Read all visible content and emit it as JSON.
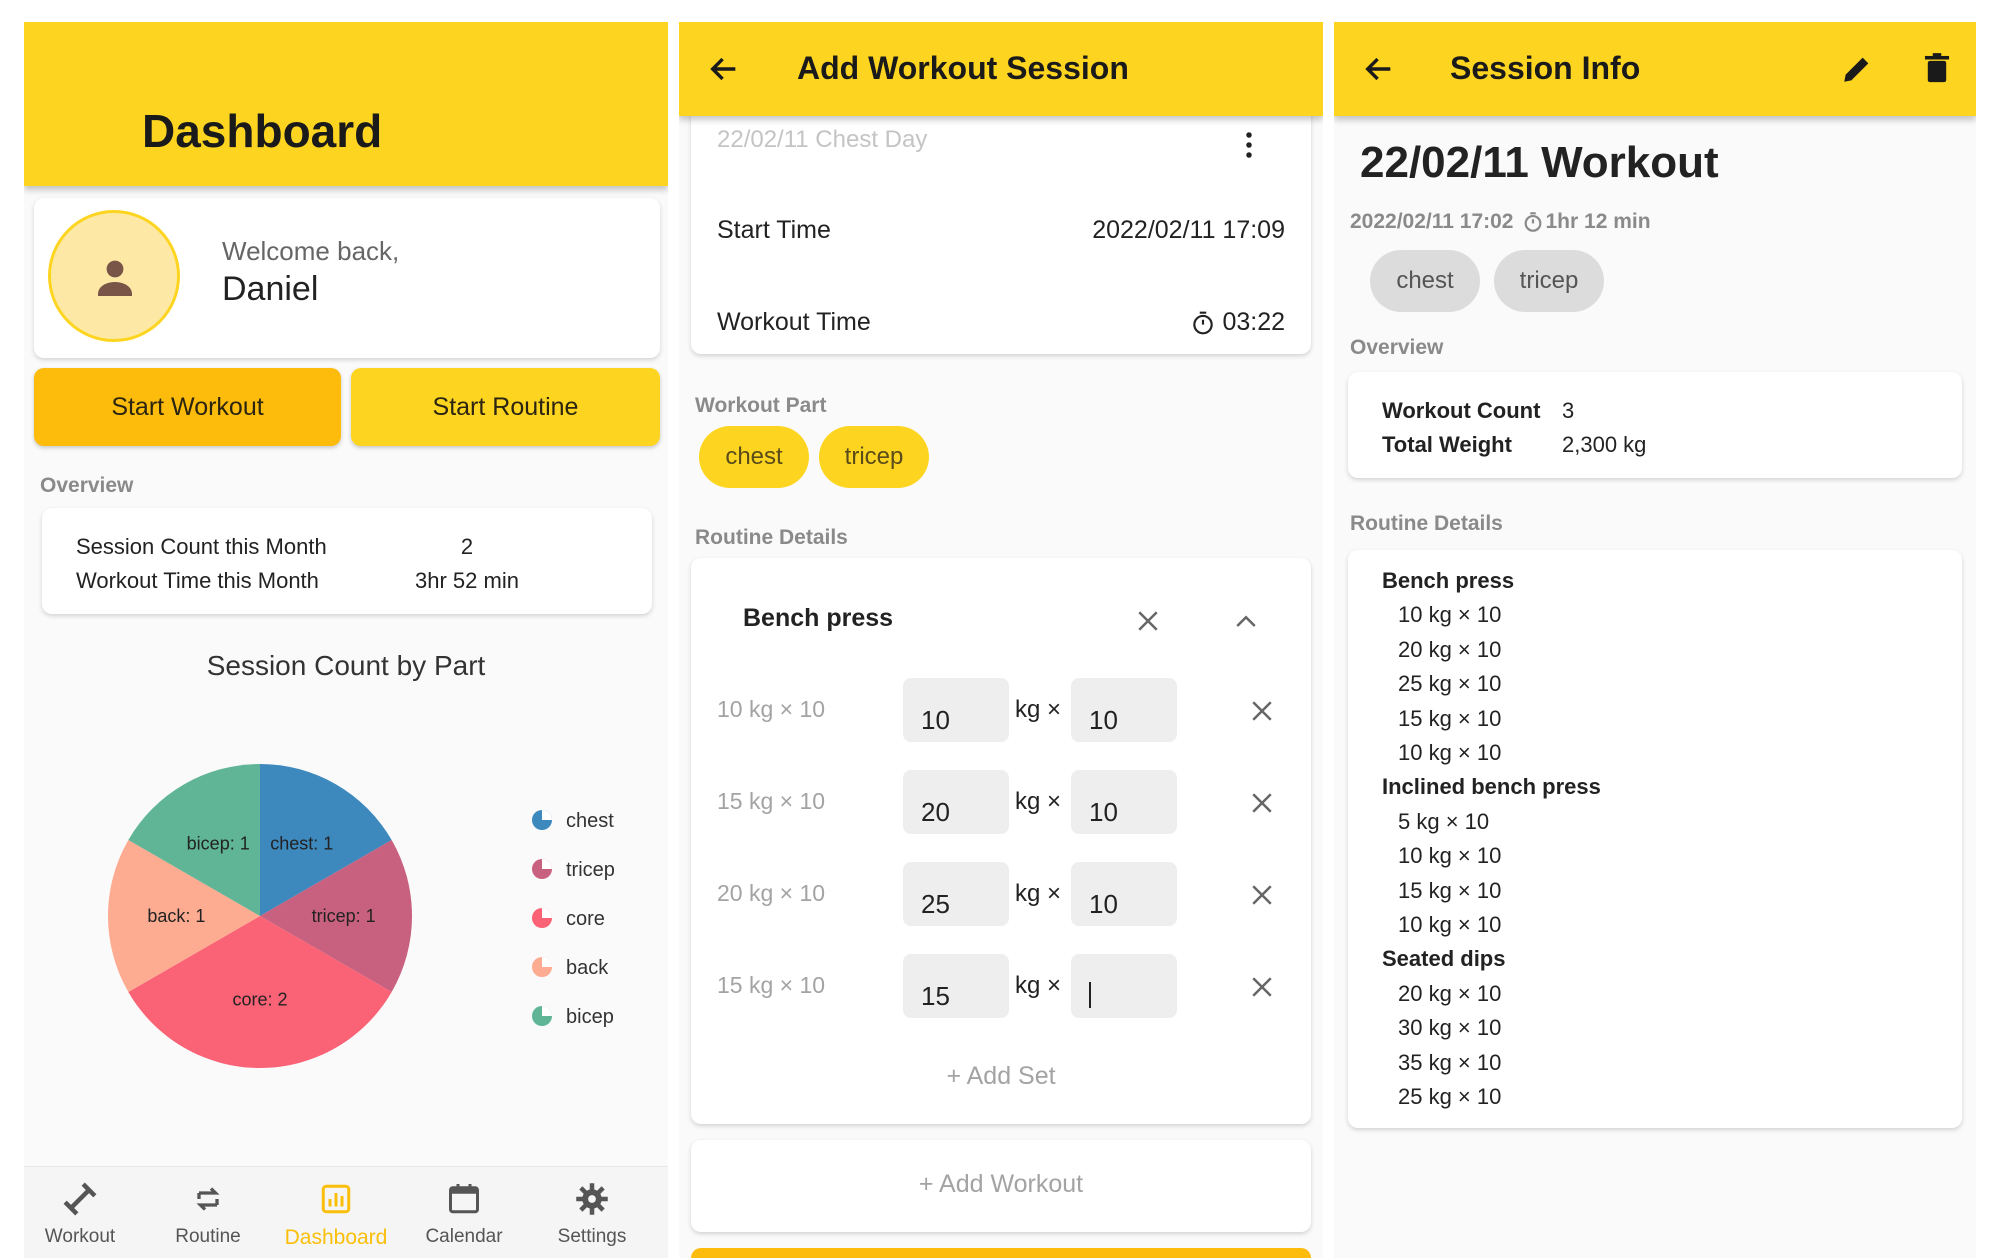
{
  "dashboard": {
    "title": "Dashboard",
    "welcome": "Welcome back,",
    "user_name": "Daniel",
    "start_workout": "Start Workout",
    "start_routine": "Start Routine",
    "overview_label": "Overview",
    "overview_rows": [
      {
        "label": "Session Count this Month",
        "value": "2"
      },
      {
        "label": "Workout Time this Month",
        "value": "3hr 52 min"
      }
    ],
    "chart_data": {
      "type": "pie",
      "title": "Session Count by Part",
      "slices": [
        {
          "name": "chest",
          "value": 1,
          "label": "chest: 1",
          "color": "#3d88bd"
        },
        {
          "name": "tricep",
          "value": 1,
          "label": "tricep: 1",
          "color": "#c8607f"
        },
        {
          "name": "core",
          "value": 2,
          "label": "core: 2",
          "color": "#fa6276"
        },
        {
          "name": "back",
          "value": 1,
          "label": "back: 1",
          "color": "#fdab91"
        },
        {
          "name": "bicep",
          "value": 1,
          "label": "bicep: 1",
          "color": "#60b596"
        }
      ],
      "legend_position": "right"
    },
    "nav": [
      {
        "label": "Workout",
        "icon": "dumbbell-icon",
        "active": false
      },
      {
        "label": "Routine",
        "icon": "repeat-icon",
        "active": false
      },
      {
        "label": "Dashboard",
        "icon": "chart-icon",
        "active": true
      },
      {
        "label": "Calendar",
        "icon": "calendar-icon",
        "active": false
      },
      {
        "label": "Settings",
        "icon": "gear-icon",
        "active": false
      }
    ]
  },
  "add_session": {
    "title": "Add Workout Session",
    "session_name": "22/02/11 Chest Day",
    "start_time_label": "Start Time",
    "start_time_value": "2022/02/11 17:09",
    "workout_time_label": "Workout Time",
    "workout_time_value": "03:22",
    "workout_part_label": "Workout Part",
    "parts": [
      "chest",
      "tricep"
    ],
    "routine_details_label": "Routine Details",
    "exercise_name": "Bench press",
    "sets": [
      {
        "previous": "10 kg × 10",
        "weight": "10",
        "reps": "10"
      },
      {
        "previous": "15 kg × 10",
        "weight": "20",
        "reps": "10"
      },
      {
        "previous": "20 kg × 10",
        "weight": "25",
        "reps": "10"
      },
      {
        "previous": "15 kg × 10",
        "weight": "15",
        "reps": ""
      }
    ],
    "kg_x": "kg ×",
    "add_set": "Add Set",
    "add_workout": "Add Workout"
  },
  "session_info": {
    "title": "Session Info",
    "heading": "22/02/11 Workout",
    "datetime": "2022/02/11 17:02",
    "duration": "1hr 12 min",
    "parts": [
      "chest",
      "tricep"
    ],
    "overview_label": "Overview",
    "overview_rows": [
      {
        "label": "Workout Count",
        "value": "3"
      },
      {
        "label": "Total Weight",
        "value": "2,300 kg"
      }
    ],
    "routine_details_label": "Routine Details",
    "exercises": [
      {
        "name": "Bench press",
        "sets": [
          "10 kg × 10",
          "20 kg × 10",
          "25 kg × 10",
          "15 kg × 10",
          "10 kg × 10"
        ]
      },
      {
        "name": "Inclined bench press",
        "sets": [
          "5 kg × 10",
          "10 kg × 10",
          "15 kg × 10",
          "10 kg × 10"
        ]
      },
      {
        "name": "Seated dips",
        "sets": [
          "20 kg × 10",
          "30 kg × 10",
          "35 kg × 10",
          "25 kg × 10"
        ]
      }
    ]
  }
}
